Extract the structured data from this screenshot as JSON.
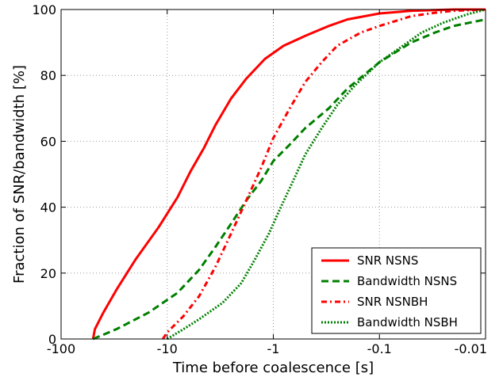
{
  "chart_data": {
    "type": "line",
    "xlabel": "Time before coalescence [s]",
    "ylabel": "Fraction of SNR/bandwidth [%]",
    "x_scale": "log-reversed",
    "x_ticks": [
      100,
      10,
      1,
      0.1,
      0.01
    ],
    "x_tick_labels": [
      "-100",
      "-10",
      "-1",
      "-0.1",
      "-0.01"
    ],
    "y_ticks": [
      0,
      20,
      40,
      60,
      80,
      100
    ],
    "ylim": [
      0,
      100
    ],
    "xlim": [
      100,
      0.01
    ],
    "grid": true,
    "legend_position": "lower-right",
    "series": [
      {
        "name": "SNR NSNS",
        "color": "#ff0000",
        "style": "solid",
        "points": [
          [
            50,
            0
          ],
          [
            48,
            3
          ],
          [
            40,
            8
          ],
          [
            30,
            15
          ],
          [
            20,
            24
          ],
          [
            12,
            34
          ],
          [
            8,
            43
          ],
          [
            6,
            51
          ],
          [
            4.5,
            58
          ],
          [
            3.5,
            65
          ],
          [
            2.5,
            73
          ],
          [
            1.8,
            79
          ],
          [
            1.2,
            85
          ],
          [
            0.8,
            89
          ],
          [
            0.5,
            92
          ],
          [
            0.3,
            95
          ],
          [
            0.2,
            97
          ],
          [
            0.1,
            98.8
          ],
          [
            0.05,
            99.6
          ],
          [
            0.02,
            100
          ],
          [
            0.01,
            100
          ]
        ]
      },
      {
        "name": "Bandwidth NSNS",
        "color": "#007f00",
        "style": "dashed",
        "points": [
          [
            50,
            0
          ],
          [
            30,
            3
          ],
          [
            15,
            8
          ],
          [
            8,
            14
          ],
          [
            5,
            21
          ],
          [
            3.5,
            28
          ],
          [
            2.5,
            35
          ],
          [
            1.8,
            42
          ],
          [
            1.3,
            48
          ],
          [
            1,
            54
          ],
          [
            0.7,
            59
          ],
          [
            0.5,
            64
          ],
          [
            0.3,
            70
          ],
          [
            0.2,
            76
          ],
          [
            0.1,
            84
          ],
          [
            0.05,
            90
          ],
          [
            0.03,
            93
          ],
          [
            0.02,
            95
          ],
          [
            0.01,
            97
          ]
        ]
      },
      {
        "name": "SNR NSNBH",
        "color": "#ff0000",
        "style": "dashdot",
        "points": [
          [
            11,
            0
          ],
          [
            10,
            2
          ],
          [
            7,
            7
          ],
          [
            5,
            13
          ],
          [
            3.5,
            22
          ],
          [
            2.5,
            32
          ],
          [
            1.8,
            42
          ],
          [
            1.3,
            52
          ],
          [
            1,
            61
          ],
          [
            0.7,
            70
          ],
          [
            0.5,
            78
          ],
          [
            0.35,
            84
          ],
          [
            0.25,
            89
          ],
          [
            0.15,
            93
          ],
          [
            0.1,
            95
          ],
          [
            0.05,
            98
          ],
          [
            0.03,
            99
          ],
          [
            0.02,
            99.6
          ],
          [
            0.01,
            100
          ]
        ]
      },
      {
        "name": "Bandwidth NSBH",
        "color": "#007f00",
        "style": "dotted",
        "points": [
          [
            10,
            0
          ],
          [
            7,
            3
          ],
          [
            5,
            6
          ],
          [
            3,
            11
          ],
          [
            2,
            17
          ],
          [
            1.5,
            24
          ],
          [
            1.1,
            32
          ],
          [
            0.85,
            40
          ],
          [
            0.65,
            48
          ],
          [
            0.5,
            56
          ],
          [
            0.35,
            64
          ],
          [
            0.25,
            71
          ],
          [
            0.17,
            77
          ],
          [
            0.1,
            84
          ],
          [
            0.06,
            89
          ],
          [
            0.04,
            93
          ],
          [
            0.025,
            96
          ],
          [
            0.015,
            98.5
          ],
          [
            0.01,
            100
          ]
        ]
      }
    ]
  }
}
